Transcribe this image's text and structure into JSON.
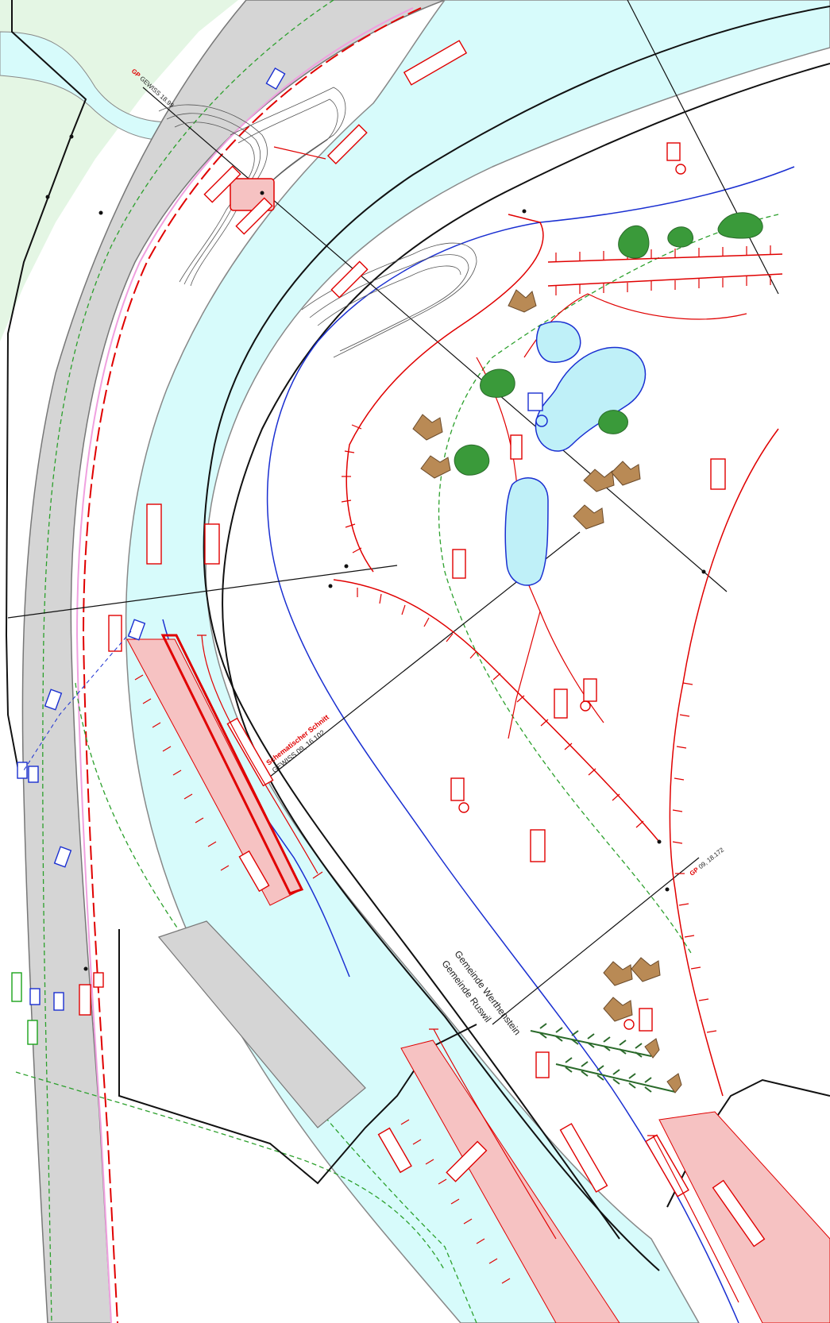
{
  "labels": {
    "gp_top_tag": "GP",
    "gp_top_text": "GEWISS 18.99",
    "section_title": "Schematischer Schnitt",
    "section_id": "GEWISS 09, 16.102",
    "gp_right_tag": "GP",
    "gp_right_text": "09, 18.172",
    "boundary_upper": "Gemeinde Werthenstein",
    "boundary_lower": "Gemeinde Ruswil"
  },
  "colors": {
    "river": "#d7fbfb",
    "road": "#d5d5d5",
    "meadow": "#e4f6e4",
    "measure_red": "#e00000",
    "measure_fill": "#f6c2c2",
    "water_blue": "#1a2fd1",
    "ponds": "#bff0f8",
    "trees_green": "#3a9a3a",
    "path_green": "#2ca02c",
    "contour_grey": "#555555"
  },
  "icons": [
    "conifer-tree-icon",
    "deciduous-tree-icon",
    "tree-cluster-icon",
    "marker-circle-icon"
  ]
}
